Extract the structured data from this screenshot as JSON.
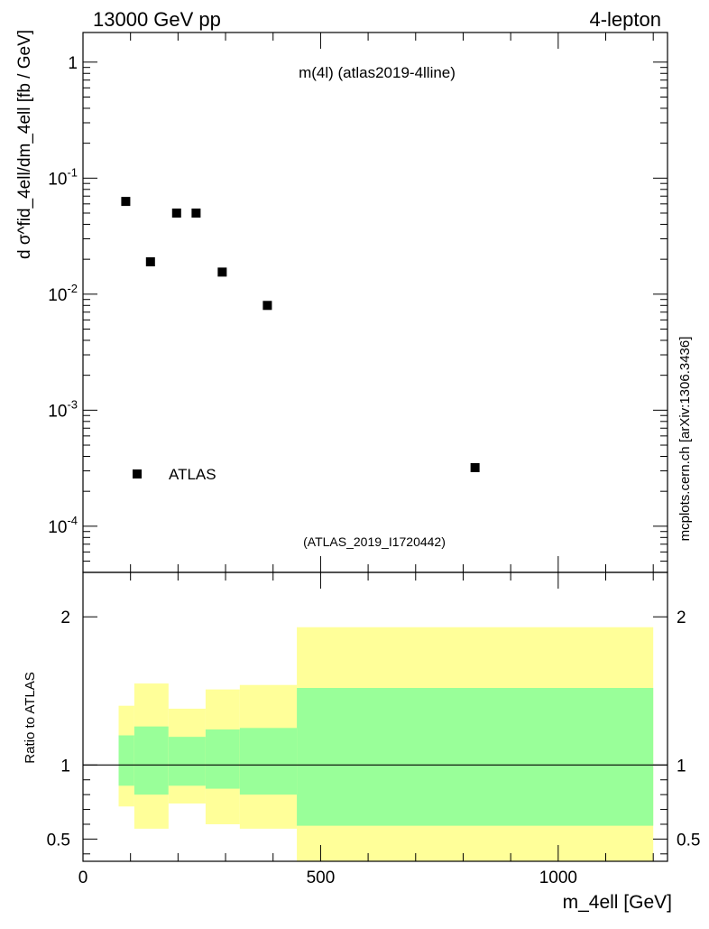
{
  "header": {
    "left": "13000 GeV pp",
    "right": "4-lepton"
  },
  "side_label": "mcplots.cern.ch [arXiv:1306.3436]",
  "chart_data": [
    {
      "type": "scatter",
      "panel": "main",
      "title": "m(4l) (atlas2019-4lline)",
      "analysis_tag": "(ATLAS_2019_I1720442)",
      "ylabel": "d σ^fid_4ell/dm_4ell [fb / GeV]",
      "yscale": "log",
      "xlim": [
        0,
        1230
      ],
      "ylim": [
        4e-05,
        1.8
      ],
      "ytick_labels": [
        "10^-4",
        "10^-3",
        "10^-2",
        "10^-1",
        "1"
      ],
      "legend": {
        "label": "ATLAS",
        "placement": "bottom-left"
      },
      "series": [
        {
          "name": "ATLAS",
          "marker": "square",
          "x": [
            90,
            142,
            197,
            238,
            293,
            388,
            825
          ],
          "y": [
            0.063,
            0.019,
            0.05,
            0.05,
            0.0155,
            0.008,
            0.00032
          ]
        }
      ]
    },
    {
      "type": "area",
      "panel": "ratio",
      "ylabel": "Ratio to ATLAS",
      "xlabel": "m_4ell [GeV]",
      "xlim": [
        0,
        1230
      ],
      "ylim": [
        0.35,
        2.3
      ],
      "xtick_labels": [
        "0",
        "500",
        "1000"
      ],
      "ytick_labels": [
        "0.5",
        "1",
        "2"
      ],
      "reference_line": 1,
      "bands": {
        "edges": [
          75,
          108,
          180,
          258,
          330,
          450,
          1200
        ],
        "outer_upper": [
          1.4,
          1.55,
          1.38,
          1.51,
          1.54,
          1.93
        ],
        "outer_lower": [
          0.72,
          0.57,
          0.74,
          0.6,
          0.57,
          0.35
        ],
        "inner_upper": [
          1.2,
          1.26,
          1.19,
          1.24,
          1.25,
          1.52
        ],
        "inner_lower": [
          0.86,
          0.8,
          0.86,
          0.84,
          0.8,
          0.59
        ],
        "outer_color": "#ffff99",
        "inner_color": "#99ff99"
      }
    }
  ],
  "colors": {
    "marker": "#000000",
    "analysis_tag": "#999999",
    "side_label": "#666666"
  }
}
